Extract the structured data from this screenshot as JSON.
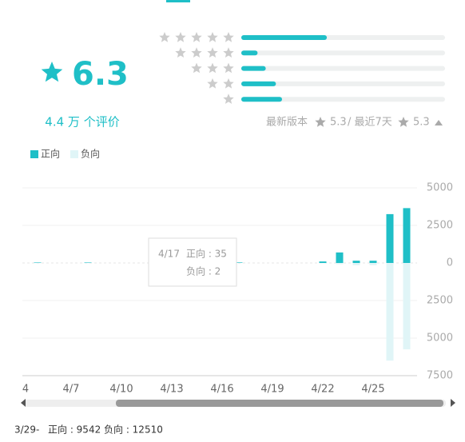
{
  "rating": {
    "score": "6.3",
    "count": "4.4 万 个评价",
    "distribution": [
      42,
      8,
      12,
      17,
      20
    ],
    "latest_version_label": "最新版本",
    "latest_version_score": "5.3",
    "recent_label": "/ 最近7天",
    "recent_score": "5.3"
  },
  "chart_data": {
    "type": "bar",
    "categories": [
      "4",
      null,
      null,
      "4/7",
      null,
      null,
      "4/10",
      null,
      null,
      "4/13",
      null,
      null,
      "4/16",
      null,
      null,
      "4/19",
      null,
      null,
      "4/22",
      null,
      null,
      "4/25",
      null,
      null
    ],
    "series": [
      {
        "name": "正向",
        "color": "#1fbfc7",
        "values": [
          0,
          30,
          0,
          0,
          30,
          0,
          0,
          0,
          0,
          0,
          0,
          0,
          0,
          35,
          0,
          0,
          0,
          0,
          100,
          700,
          150,
          150,
          3250,
          3650
        ]
      },
      {
        "name": "负向",
        "color": "#e0f5f7",
        "values": [
          0,
          -10,
          0,
          0,
          -10,
          0,
          0,
          0,
          0,
          0,
          0,
          0,
          0,
          -2,
          0,
          0,
          0,
          0,
          -20,
          -80,
          -150,
          -150,
          -6500,
          -5750
        ]
      }
    ],
    "ylim": [
      -7500,
      5000
    ],
    "yticks": [
      5000,
      2500,
      0,
      {
        "value": -2500,
        "label": "2500"
      },
      {
        "value": -5000,
        "label": "5000"
      },
      {
        "value": -7500,
        "label": "7500"
      }
    ],
    "grid": true,
    "tooltip": {
      "date": "4/17",
      "positive": "正向 : 35",
      "negative": "负向 : 2"
    }
  },
  "summary": {
    "range": "3/29-",
    "positive": "正向 : 9542",
    "negative": "负向 : 12510"
  }
}
